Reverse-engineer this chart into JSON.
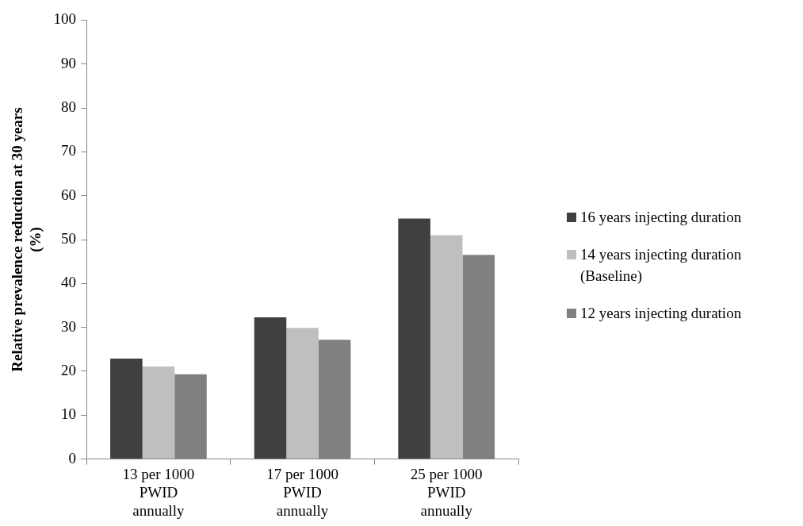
{
  "chart_data": {
    "type": "bar",
    "ylabel": "Relative prevalence reduction at 30 years (%)",
    "categories": [
      "13 per 1000 PWID annually",
      "17 per 1000 PWID annually",
      "25 per 1000 PWID annually"
    ],
    "series": [
      {
        "name": "16 years injecting duration",
        "color": "#404040",
        "values": [
          22.9,
          32.3,
          54.8
        ]
      },
      {
        "name": "14 years injecting duration (Baseline)",
        "color": "#bfbfbf",
        "values": [
          21.1,
          29.9,
          51.0
        ]
      },
      {
        "name": "12 years injecting duration",
        "color": "#808080",
        "values": [
          19.3,
          27.2,
          46.5
        ]
      }
    ],
    "ylim": [
      0,
      100
    ],
    "yticks": [
      0,
      10,
      20,
      30,
      40,
      50,
      60,
      70,
      80,
      90,
      100
    ],
    "grid": false,
    "legend": "right"
  }
}
